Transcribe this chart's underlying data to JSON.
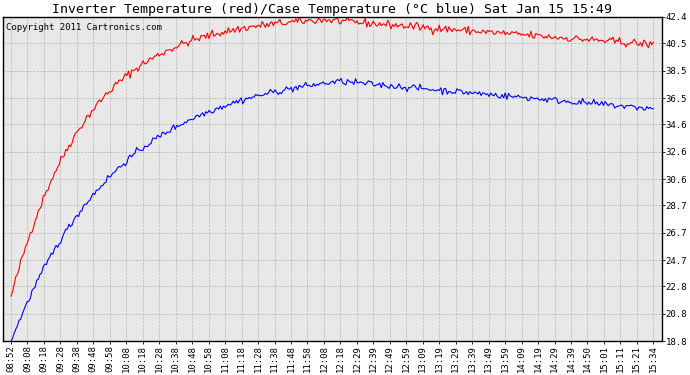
{
  "title": "Inverter Temperature (red)/Case Temperature (°C blue) Sat Jan 15 15:49",
  "copyright": "Copyright 2011 Cartronics.com",
  "ylim": [
    18.8,
    42.4
  ],
  "yticks": [
    18.8,
    20.8,
    22.8,
    24.7,
    26.7,
    28.7,
    30.6,
    32.6,
    34.6,
    36.5,
    38.5,
    40.5,
    42.4
  ],
  "background_color": "#ffffff",
  "plot_bg": "#e8e8e8",
  "grid_color": "#aaaaaa",
  "x_labels": [
    "08:52",
    "09:08",
    "09:18",
    "09:28",
    "09:38",
    "09:48",
    "09:58",
    "10:08",
    "10:18",
    "10:28",
    "10:38",
    "10:48",
    "10:58",
    "11:08",
    "11:18",
    "11:28",
    "11:38",
    "11:48",
    "11:58",
    "12:08",
    "12:18",
    "12:29",
    "12:39",
    "12:49",
    "12:59",
    "13:09",
    "13:19",
    "13:29",
    "13:39",
    "13:49",
    "13:59",
    "14:09",
    "14:19",
    "14:29",
    "14:39",
    "14:50",
    "15:01",
    "15:11",
    "15:21",
    "15:34"
  ],
  "red_color": "#ff0000",
  "blue_color": "#0000ff",
  "title_fontsize": 9.5,
  "tick_fontsize": 6.5,
  "copyright_fontsize": 6.5,
  "line_width": 0.8
}
